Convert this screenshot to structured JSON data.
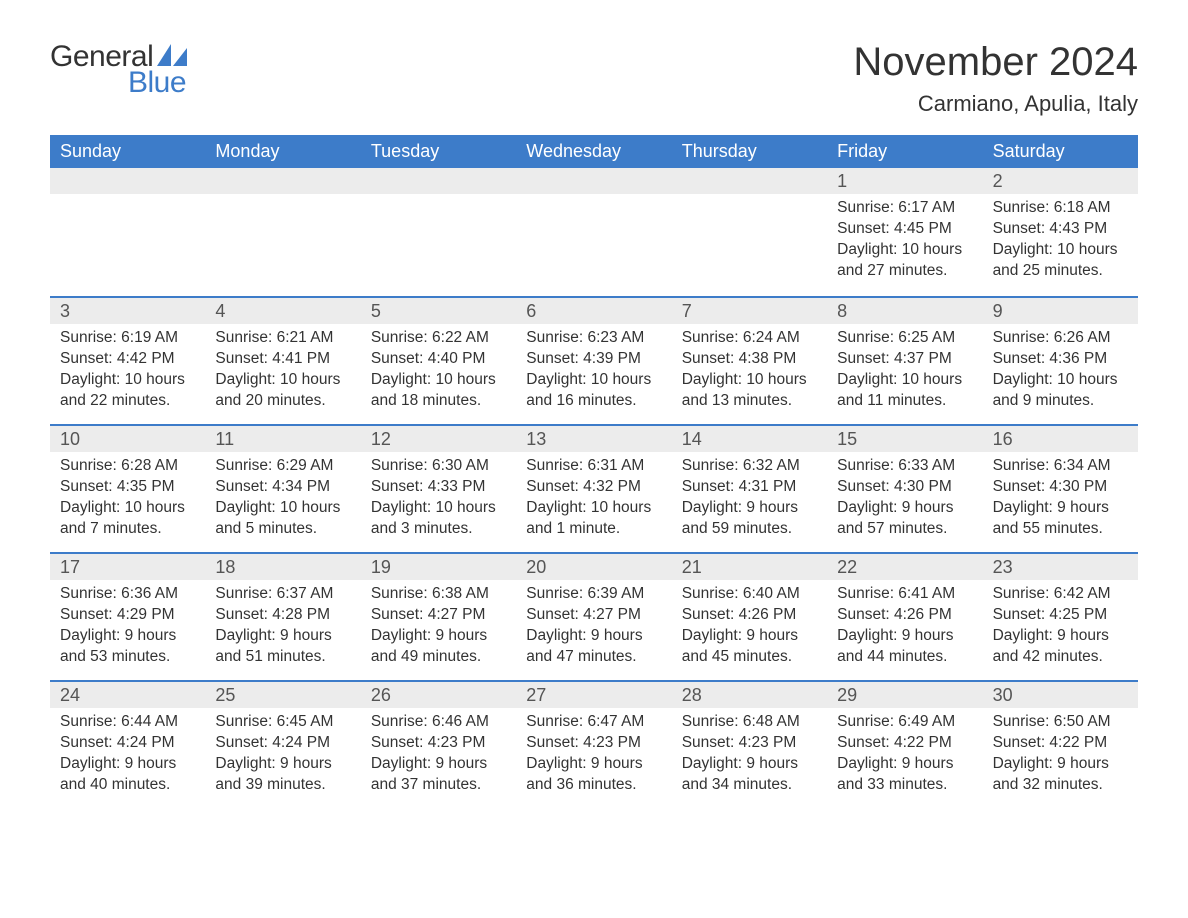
{
  "logo": {
    "text_general": "General",
    "text_blue": "Blue",
    "sail_color": "#3d7cc9"
  },
  "title": {
    "month": "November 2024",
    "location": "Carmiano, Apulia, Italy"
  },
  "colors": {
    "header_bg": "#3d7cc9",
    "header_text": "#ffffff",
    "daynum_bg": "#ececec",
    "body_text": "#333333",
    "rule": "#3d7cc9"
  },
  "day_names": [
    "Sunday",
    "Monday",
    "Tuesday",
    "Wednesday",
    "Thursday",
    "Friday",
    "Saturday"
  ],
  "weeks": [
    [
      null,
      null,
      null,
      null,
      null,
      {
        "n": "1",
        "sunrise": "Sunrise: 6:17 AM",
        "sunset": "Sunset: 4:45 PM",
        "daylight": "Daylight: 10 hours and 27 minutes."
      },
      {
        "n": "2",
        "sunrise": "Sunrise: 6:18 AM",
        "sunset": "Sunset: 4:43 PM",
        "daylight": "Daylight: 10 hours and 25 minutes."
      }
    ],
    [
      {
        "n": "3",
        "sunrise": "Sunrise: 6:19 AM",
        "sunset": "Sunset: 4:42 PM",
        "daylight": "Daylight: 10 hours and 22 minutes."
      },
      {
        "n": "4",
        "sunrise": "Sunrise: 6:21 AM",
        "sunset": "Sunset: 4:41 PM",
        "daylight": "Daylight: 10 hours and 20 minutes."
      },
      {
        "n": "5",
        "sunrise": "Sunrise: 6:22 AM",
        "sunset": "Sunset: 4:40 PM",
        "daylight": "Daylight: 10 hours and 18 minutes."
      },
      {
        "n": "6",
        "sunrise": "Sunrise: 6:23 AM",
        "sunset": "Sunset: 4:39 PM",
        "daylight": "Daylight: 10 hours and 16 minutes."
      },
      {
        "n": "7",
        "sunrise": "Sunrise: 6:24 AM",
        "sunset": "Sunset: 4:38 PM",
        "daylight": "Daylight: 10 hours and 13 minutes."
      },
      {
        "n": "8",
        "sunrise": "Sunrise: 6:25 AM",
        "sunset": "Sunset: 4:37 PM",
        "daylight": "Daylight: 10 hours and 11 minutes."
      },
      {
        "n": "9",
        "sunrise": "Sunrise: 6:26 AM",
        "sunset": "Sunset: 4:36 PM",
        "daylight": "Daylight: 10 hours and 9 minutes."
      }
    ],
    [
      {
        "n": "10",
        "sunrise": "Sunrise: 6:28 AM",
        "sunset": "Sunset: 4:35 PM",
        "daylight": "Daylight: 10 hours and 7 minutes."
      },
      {
        "n": "11",
        "sunrise": "Sunrise: 6:29 AM",
        "sunset": "Sunset: 4:34 PM",
        "daylight": "Daylight: 10 hours and 5 minutes."
      },
      {
        "n": "12",
        "sunrise": "Sunrise: 6:30 AM",
        "sunset": "Sunset: 4:33 PM",
        "daylight": "Daylight: 10 hours and 3 minutes."
      },
      {
        "n": "13",
        "sunrise": "Sunrise: 6:31 AM",
        "sunset": "Sunset: 4:32 PM",
        "daylight": "Daylight: 10 hours and 1 minute."
      },
      {
        "n": "14",
        "sunrise": "Sunrise: 6:32 AM",
        "sunset": "Sunset: 4:31 PM",
        "daylight": "Daylight: 9 hours and 59 minutes."
      },
      {
        "n": "15",
        "sunrise": "Sunrise: 6:33 AM",
        "sunset": "Sunset: 4:30 PM",
        "daylight": "Daylight: 9 hours and 57 minutes."
      },
      {
        "n": "16",
        "sunrise": "Sunrise: 6:34 AM",
        "sunset": "Sunset: 4:30 PM",
        "daylight": "Daylight: 9 hours and 55 minutes."
      }
    ],
    [
      {
        "n": "17",
        "sunrise": "Sunrise: 6:36 AM",
        "sunset": "Sunset: 4:29 PM",
        "daylight": "Daylight: 9 hours and 53 minutes."
      },
      {
        "n": "18",
        "sunrise": "Sunrise: 6:37 AM",
        "sunset": "Sunset: 4:28 PM",
        "daylight": "Daylight: 9 hours and 51 minutes."
      },
      {
        "n": "19",
        "sunrise": "Sunrise: 6:38 AM",
        "sunset": "Sunset: 4:27 PM",
        "daylight": "Daylight: 9 hours and 49 minutes."
      },
      {
        "n": "20",
        "sunrise": "Sunrise: 6:39 AM",
        "sunset": "Sunset: 4:27 PM",
        "daylight": "Daylight: 9 hours and 47 minutes."
      },
      {
        "n": "21",
        "sunrise": "Sunrise: 6:40 AM",
        "sunset": "Sunset: 4:26 PM",
        "daylight": "Daylight: 9 hours and 45 minutes."
      },
      {
        "n": "22",
        "sunrise": "Sunrise: 6:41 AM",
        "sunset": "Sunset: 4:26 PM",
        "daylight": "Daylight: 9 hours and 44 minutes."
      },
      {
        "n": "23",
        "sunrise": "Sunrise: 6:42 AM",
        "sunset": "Sunset: 4:25 PM",
        "daylight": "Daylight: 9 hours and 42 minutes."
      }
    ],
    [
      {
        "n": "24",
        "sunrise": "Sunrise: 6:44 AM",
        "sunset": "Sunset: 4:24 PM",
        "daylight": "Daylight: 9 hours and 40 minutes."
      },
      {
        "n": "25",
        "sunrise": "Sunrise: 6:45 AM",
        "sunset": "Sunset: 4:24 PM",
        "daylight": "Daylight: 9 hours and 39 minutes."
      },
      {
        "n": "26",
        "sunrise": "Sunrise: 6:46 AM",
        "sunset": "Sunset: 4:23 PM",
        "daylight": "Daylight: 9 hours and 37 minutes."
      },
      {
        "n": "27",
        "sunrise": "Sunrise: 6:47 AM",
        "sunset": "Sunset: 4:23 PM",
        "daylight": "Daylight: 9 hours and 36 minutes."
      },
      {
        "n": "28",
        "sunrise": "Sunrise: 6:48 AM",
        "sunset": "Sunset: 4:23 PM",
        "daylight": "Daylight: 9 hours and 34 minutes."
      },
      {
        "n": "29",
        "sunrise": "Sunrise: 6:49 AM",
        "sunset": "Sunset: 4:22 PM",
        "daylight": "Daylight: 9 hours and 33 minutes."
      },
      {
        "n": "30",
        "sunrise": "Sunrise: 6:50 AM",
        "sunset": "Sunset: 4:22 PM",
        "daylight": "Daylight: 9 hours and 32 minutes."
      }
    ]
  ]
}
